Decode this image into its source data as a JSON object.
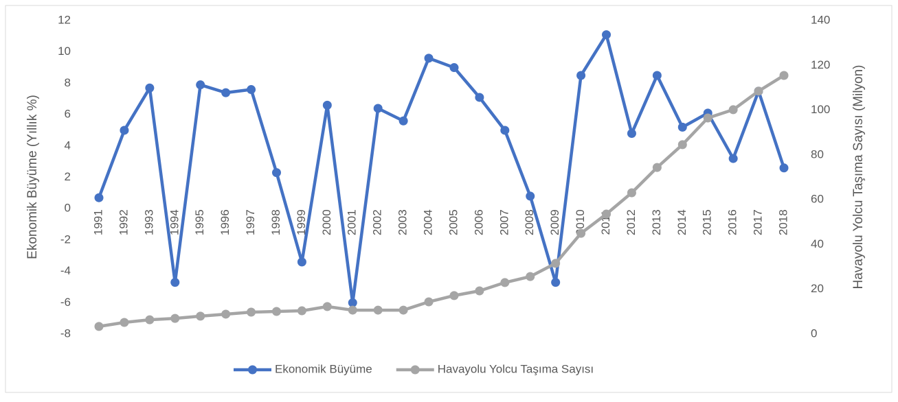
{
  "chart_data": {
    "type": "line",
    "categories": [
      "1991",
      "1992",
      "1993",
      "1994",
      "1995",
      "1996",
      "1997",
      "1998",
      "1999",
      "2000",
      "2001",
      "2002",
      "2003",
      "2004",
      "2005",
      "2006",
      "2007",
      "2008",
      "2009",
      "2010",
      "2011",
      "2012",
      "2013",
      "2014",
      "2015",
      "2016",
      "2017",
      "2018"
    ],
    "series": [
      {
        "name": "Ekonomik Büyüme",
        "color": "#4472c4",
        "axis": "y",
        "values": [
          0.7,
          5.0,
          7.7,
          -4.7,
          7.9,
          7.4,
          7.6,
          2.3,
          -3.4,
          6.6,
          -6.0,
          6.4,
          5.6,
          9.6,
          9.0,
          7.1,
          5.0,
          0.8,
          -4.7,
          8.5,
          11.1,
          4.8,
          8.5,
          5.2,
          6.1,
          3.2,
          7.5,
          2.6
        ]
      },
      {
        "name": "Havayolu Yolcu Taşıma Sayısı",
        "color": "#a5a5a5",
        "axis": "y2",
        "values": [
          3.4,
          5.2,
          6.4,
          7.0,
          8.0,
          8.9,
          9.8,
          10.1,
          10.4,
          12.3,
          10.7,
          10.7,
          10.7,
          14.4,
          17.2,
          19.3,
          23.0,
          25.7,
          31.6,
          45.0,
          53.6,
          63.1,
          74.4,
          84.6,
          96.5,
          100.2,
          108.5,
          115.5
        ]
      }
    ],
    "ylabel": "Ekonomik Büyüme (Yıllık %)",
    "y2label": "Havayolu Yolcu Taşıma Sayısı (Milyon)",
    "ylim": [
      -8,
      12
    ],
    "yticks": [
      -8,
      -6,
      -4,
      -2,
      0,
      2,
      4,
      6,
      8,
      10,
      12
    ],
    "y2lim": [
      0,
      140
    ],
    "y2ticks": [
      0,
      20,
      40,
      60,
      80,
      100,
      120,
      140
    ],
    "grid": false,
    "legend": "bottom"
  }
}
